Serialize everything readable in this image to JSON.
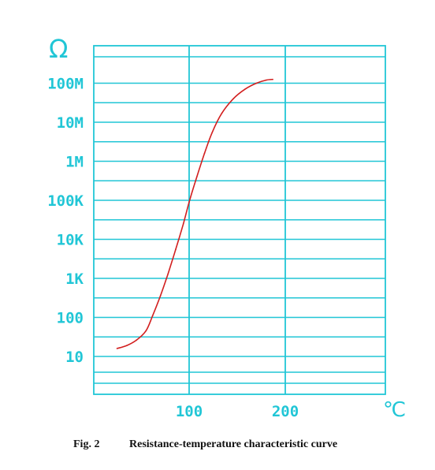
{
  "chart_data": {
    "type": "line",
    "y_unit": "Ω",
    "x_unit": "℃",
    "y_scale": "log",
    "grid": true,
    "y_ticks": [
      {
        "label": "10",
        "value": 10
      },
      {
        "label": "100",
        "value": 100
      },
      {
        "label": "1K",
        "value": 1000
      },
      {
        "label": "10K",
        "value": 10000
      },
      {
        "label": "100K",
        "value": 100000
      },
      {
        "label": "1M",
        "value": 1000000
      },
      {
        "label": "10M",
        "value": 10000000
      },
      {
        "label": "100M",
        "value": 100000000
      }
    ],
    "x_ticks": [
      {
        "label": "100",
        "value": 100
      },
      {
        "label": "200",
        "value": 200
      }
    ],
    "xlim": [
      1,
      305
    ],
    "series": [
      {
        "color": "#d21e1e",
        "points": [
          {
            "x": 25,
            "y": 16
          },
          {
            "x": 35,
            "y": 19
          },
          {
            "x": 45,
            "y": 26
          },
          {
            "x": 55,
            "y": 45
          },
          {
            "x": 62,
            "y": 110
          },
          {
            "x": 70,
            "y": 350
          },
          {
            "x": 78,
            "y": 1300
          },
          {
            "x": 86,
            "y": 5500
          },
          {
            "x": 94,
            "y": 25000
          },
          {
            "x": 100,
            "y": 90000
          },
          {
            "x": 108,
            "y": 400000
          },
          {
            "x": 116,
            "y": 1600000
          },
          {
            "x": 124,
            "y": 5500000
          },
          {
            "x": 134,
            "y": 17000000
          },
          {
            "x": 146,
            "y": 40000000
          },
          {
            "x": 158,
            "y": 70000000
          },
          {
            "x": 170,
            "y": 100000000
          },
          {
            "x": 180,
            "y": 120000000
          },
          {
            "x": 187,
            "y": 125000000
          }
        ]
      }
    ],
    "caption": {
      "figure": "Fig. 2",
      "title": "Resistance-temperature characteristic curve"
    }
  },
  "colors": {
    "grid": "#21c6d6",
    "curve": "#d21e1e"
  }
}
